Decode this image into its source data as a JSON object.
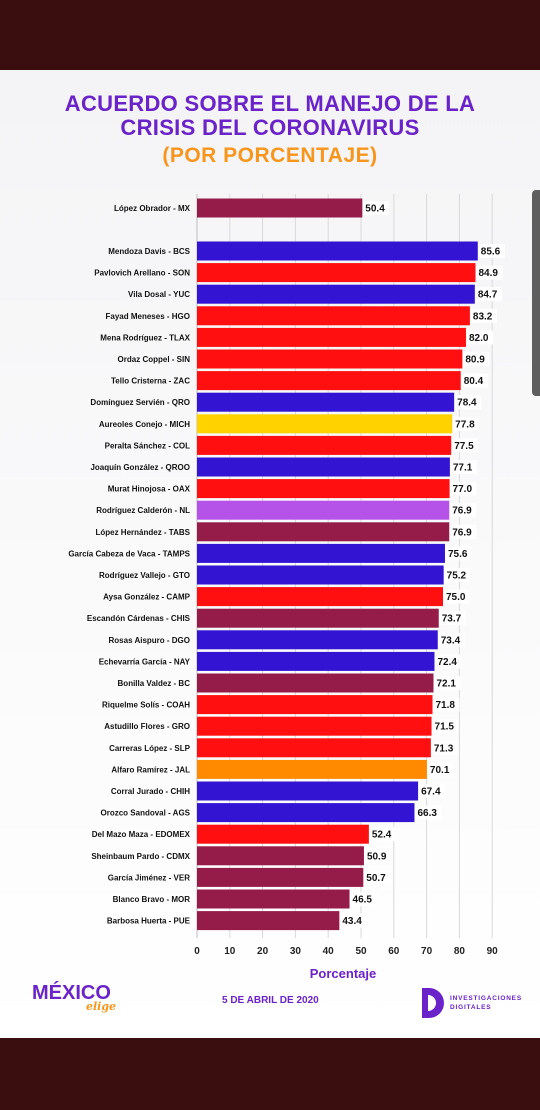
{
  "title_line1": "ACUERDO SOBRE EL MANEJO DE LA",
  "title_line2": "CRISIS DEL CORONAVIRUS",
  "subtitle": "(POR PORCENTAJE)",
  "footer": {
    "brand_left": "MÉXICO",
    "brand_left_sub": "elige",
    "date": "5 DE ABRIL DE 2020",
    "brand_right_line1": "INVESTIGACIONES",
    "brand_right_line2": "DIGITALES"
  },
  "colors": {
    "blue": "#3314d2",
    "red": "#ff0f0f",
    "maroon": "#951b48",
    "yellow": "#ffd200",
    "purple": "#b552e8",
    "orange": "#ff8a00"
  },
  "chart_data": {
    "type": "bar",
    "orientation": "horizontal",
    "xlabel": "Porcentaje",
    "xlim": [
      0,
      90
    ],
    "xticks": [
      0,
      10,
      20,
      30,
      40,
      50,
      60,
      70,
      80,
      90
    ],
    "grid": true,
    "categories": [
      "López Obrador - MX",
      "Mendoza Davis - BCS",
      "Pavlovich Arellano - SON",
      "Vila Dosal - YUC",
      "Fayad Meneses - HGO",
      "Mena Rodríguez - TLAX",
      "Ordaz Coppel - SIN",
      "Tello Cristerna - ZAC",
      "Domínguez Servién - QRO",
      "Aureoles Conejo - MICH",
      "Peralta Sánchez - COL",
      "Joaquín González - QROO",
      "Murat Hinojosa - OAX",
      "Rodríguez Calderón - NL",
      "López Hernández - TABS",
      "García Cabeza de Vaca - TAMPS",
      "Rodríguez Vallejo - GTO",
      "Aysa González - CAMP",
      "Escandón Cárdenas - CHIS",
      "Rosas Aispuro - DGO",
      "Echevarría García - NAY",
      "Bonilla Valdez - BC",
      "Riquelme Solís - COAH",
      "Astudillo Flores - GRO",
      "Carreras López - SLP",
      "Alfaro Ramírez - JAL",
      "Corral Jurado - CHIH",
      "Orozco Sandoval - AGS",
      "Del Mazo Maza - EDOMEX",
      "Sheinbaum Pardo - CDMX",
      "García Jiménez - VER",
      "Blanco Bravo - MOR",
      "Barbosa Huerta - PUE"
    ],
    "values": [
      50.4,
      85.6,
      84.9,
      84.7,
      83.2,
      82.0,
      80.9,
      80.4,
      78.4,
      77.8,
      77.5,
      77.1,
      77.0,
      76.9,
      76.9,
      75.6,
      75.2,
      75.0,
      73.7,
      73.4,
      72.4,
      72.1,
      71.8,
      71.5,
      71.3,
      70.1,
      67.4,
      66.3,
      52.4,
      50.9,
      50.7,
      46.5,
      43.4
    ],
    "value_labels": [
      "50.4",
      "85.6",
      "84.9",
      "84.7",
      "83.2",
      "82.0",
      "80.9",
      "80.4",
      "78.4",
      "77.8",
      "77.5",
      "77.1",
      "77.0",
      "76.9",
      "76.9",
      "75.6",
      "75.2",
      "75.0",
      "73.7",
      "73.4",
      "72.4",
      "72.1",
      "71.8",
      "71.5",
      "71.3",
      "70.1",
      "67.4",
      "66.3",
      "52.4",
      "50.9",
      "50.7",
      "46.5",
      "43.4"
    ],
    "bar_colors": [
      "#951b48",
      "#3314d2",
      "#ff0f0f",
      "#3314d2",
      "#ff0f0f",
      "#ff0f0f",
      "#ff0f0f",
      "#ff0f0f",
      "#3314d2",
      "#ffd200",
      "#ff0f0f",
      "#3314d2",
      "#ff0f0f",
      "#b552e8",
      "#951b48",
      "#3314d2",
      "#3314d2",
      "#ff0f0f",
      "#951b48",
      "#3314d2",
      "#3314d2",
      "#951b48",
      "#ff0f0f",
      "#ff0f0f",
      "#ff0f0f",
      "#ff8a00",
      "#3314d2",
      "#3314d2",
      "#ff0f0f",
      "#951b48",
      "#951b48",
      "#951b48",
      "#951b48"
    ]
  }
}
